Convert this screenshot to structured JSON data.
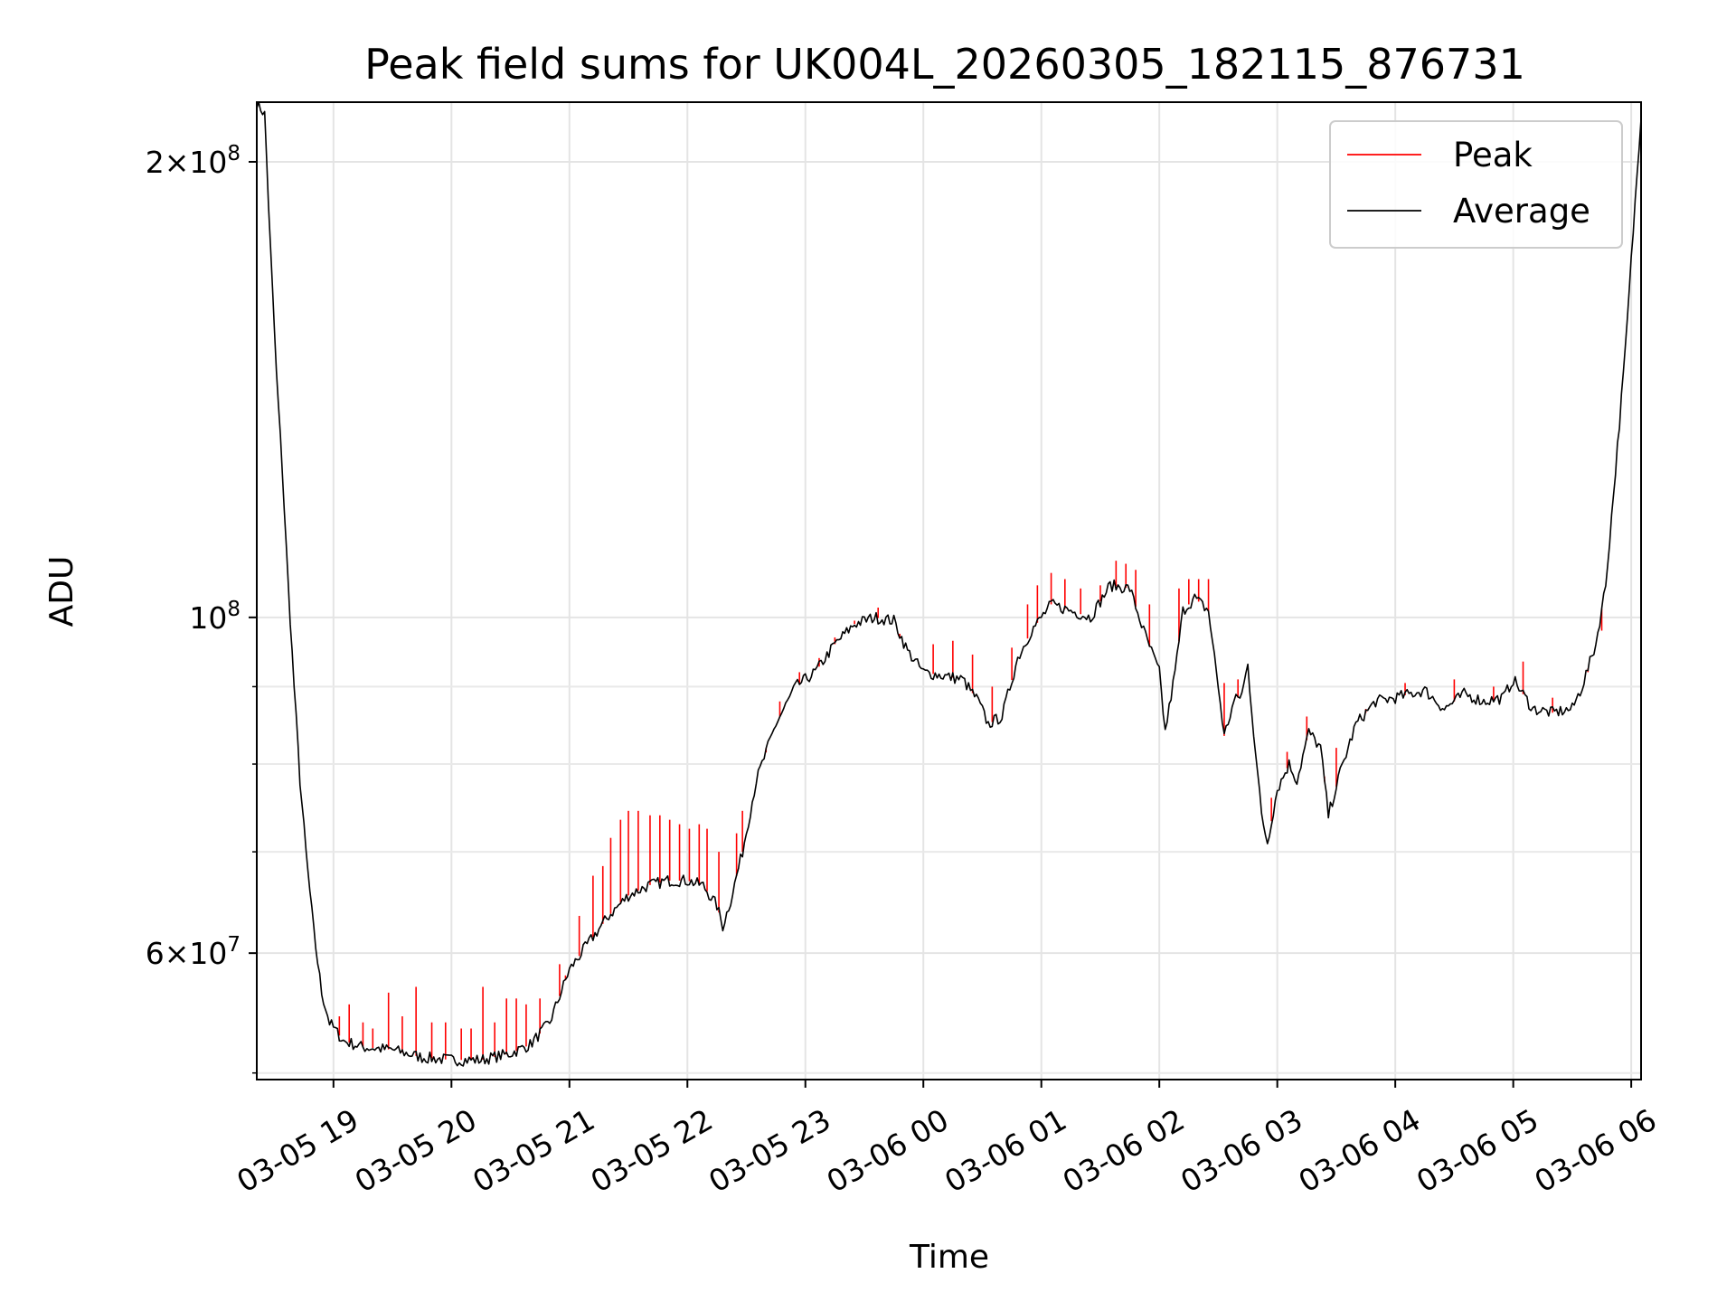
{
  "chart_data": {
    "type": "line",
    "title": "Peak field sums for UK004L_20260305_182115_876731",
    "xlabel": "Time",
    "ylabel": "ADU",
    "yscale": "log",
    "grid": true,
    "legend_position": "top-right",
    "xlim": [
      "2026-03-05T18:21",
      "2026-03-06T06:05"
    ],
    "ylim": [
      49500000,
      219000000
    ],
    "x_ticks": [
      {
        "t": "2026-03-05T19:00",
        "label": "03-05 19"
      },
      {
        "t": "2026-03-05T20:00",
        "label": "03-05 20"
      },
      {
        "t": "2026-03-05T21:00",
        "label": "03-05 21"
      },
      {
        "t": "2026-03-05T22:00",
        "label": "03-05 22"
      },
      {
        "t": "2026-03-05T23:00",
        "label": "03-05 23"
      },
      {
        "t": "2026-03-06T00:00",
        "label": "03-06 00"
      },
      {
        "t": "2026-03-06T01:00",
        "label": "03-06 01"
      },
      {
        "t": "2026-03-06T02:00",
        "label": "03-06 02"
      },
      {
        "t": "2026-03-06T03:00",
        "label": "03-06 03"
      },
      {
        "t": "2026-03-06T04:00",
        "label": "03-06 04"
      },
      {
        "t": "2026-03-06T05:00",
        "label": "03-06 05"
      },
      {
        "t": "2026-03-06T06:00",
        "label": "03-06 06"
      }
    ],
    "y_ticks": [
      {
        "value": 60000000,
        "mantissa": "6",
        "exponent": "7"
      },
      {
        "value": 100000000,
        "mantissa": "",
        "exponent": "8"
      },
      {
        "value": 200000000,
        "mantissa": "2",
        "exponent": "8"
      }
    ],
    "y_minor_ticks": [
      50000000,
      70000000,
      80000000,
      90000000
    ],
    "series": [
      {
        "name": "Average",
        "color": "#000000",
        "points": [
          [
            "2026-03-05T18:21",
            219000000
          ],
          [
            "2026-03-05T18:25",
            215000000
          ],
          [
            "2026-03-05T18:28",
            175000000
          ],
          [
            "2026-03-05T18:31",
            145000000
          ],
          [
            "2026-03-05T18:34",
            125000000
          ],
          [
            "2026-03-05T18:37",
            105000000
          ],
          [
            "2026-03-05T18:40",
            90000000
          ],
          [
            "2026-03-05T18:43",
            78000000
          ],
          [
            "2026-03-05T18:46",
            70000000
          ],
          [
            "2026-03-05T18:50",
            62000000
          ],
          [
            "2026-03-05T18:54",
            56500000
          ],
          [
            "2026-03-05T18:58",
            54000000
          ],
          [
            "2026-03-05T19:05",
            52500000
          ],
          [
            "2026-03-05T19:15",
            52000000
          ],
          [
            "2026-03-05T19:30",
            51800000
          ],
          [
            "2026-03-05T19:45",
            51200000
          ],
          [
            "2026-03-05T20:00",
            51000000
          ],
          [
            "2026-03-05T20:15",
            51000000
          ],
          [
            "2026-03-05T20:30",
            51500000
          ],
          [
            "2026-03-05T20:40",
            52200000
          ],
          [
            "2026-03-05T20:50",
            54000000
          ],
          [
            "2026-03-05T21:00",
            58500000
          ],
          [
            "2026-03-05T21:10",
            61000000
          ],
          [
            "2026-03-05T21:20",
            63500000
          ],
          [
            "2026-03-05T21:30",
            65500000
          ],
          [
            "2026-03-05T21:40",
            66500000
          ],
          [
            "2026-03-05T21:50",
            67000000
          ],
          [
            "2026-03-05T22:00",
            67000000
          ],
          [
            "2026-03-05T22:08",
            66500000
          ],
          [
            "2026-03-05T22:15",
            64500000
          ],
          [
            "2026-03-05T22:18",
            62500000
          ],
          [
            "2026-03-05T22:22",
            65000000
          ],
          [
            "2026-03-05T22:28",
            70000000
          ],
          [
            "2026-03-05T22:35",
            78000000
          ],
          [
            "2026-03-05T22:45",
            85000000
          ],
          [
            "2026-03-05T22:55",
            90000000
          ],
          [
            "2026-03-05T23:05",
            92000000
          ],
          [
            "2026-03-05T23:15",
            96000000
          ],
          [
            "2026-03-05T23:25",
            99000000
          ],
          [
            "2026-03-05T23:35",
            100000000
          ],
          [
            "2026-03-05T23:45",
            99500000
          ],
          [
            "2026-03-05T23:52",
            95000000
          ],
          [
            "2026-03-06T00:00",
            92000000
          ],
          [
            "2026-03-06T00:10",
            91500000
          ],
          [
            "2026-03-06T00:20",
            91000000
          ],
          [
            "2026-03-06T00:28",
            88000000
          ],
          [
            "2026-03-06T00:33",
            85000000
          ],
          [
            "2026-03-06T00:40",
            86000000
          ],
          [
            "2026-03-06T00:48",
            94000000
          ],
          [
            "2026-03-06T00:55",
            98000000
          ],
          [
            "2026-03-06T01:05",
            102000000
          ],
          [
            "2026-03-06T01:15",
            101000000
          ],
          [
            "2026-03-06T01:25",
            100000000
          ],
          [
            "2026-03-06T01:35",
            105000000
          ],
          [
            "2026-03-06T01:45",
            104500000
          ],
          [
            "2026-03-06T01:52",
            98000000
          ],
          [
            "2026-03-06T02:00",
            92000000
          ],
          [
            "2026-03-06T02:03",
            84000000
          ],
          [
            "2026-03-06T02:08",
            92000000
          ],
          [
            "2026-03-06T02:12",
            101000000
          ],
          [
            "2026-03-06T02:18",
            103000000
          ],
          [
            "2026-03-06T02:25",
            101000000
          ],
          [
            "2026-03-06T02:30",
            90000000
          ],
          [
            "2026-03-06T02:33",
            83500000
          ],
          [
            "2026-03-06T02:38",
            88000000
          ],
          [
            "2026-03-06T02:42",
            89000000
          ],
          [
            "2026-03-06T02:45",
            93000000
          ],
          [
            "2026-03-06T02:48",
            84000000
          ],
          [
            "2026-03-06T02:52",
            74000000
          ],
          [
            "2026-03-06T02:55",
            71000000
          ],
          [
            "2026-03-06T03:00",
            77000000
          ],
          [
            "2026-03-06T03:06",
            80000000
          ],
          [
            "2026-03-06T03:10",
            78000000
          ],
          [
            "2026-03-06T03:16",
            84000000
          ],
          [
            "2026-03-06T03:22",
            82000000
          ],
          [
            "2026-03-06T03:26",
            74000000
          ],
          [
            "2026-03-06T03:32",
            79000000
          ],
          [
            "2026-03-06T03:40",
            85000000
          ],
          [
            "2026-03-06T03:50",
            88000000
          ],
          [
            "2026-03-06T04:00",
            88500000
          ],
          [
            "2026-03-06T04:15",
            89500000
          ],
          [
            "2026-03-06T04:25",
            87000000
          ],
          [
            "2026-03-06T04:35",
            89000000
          ],
          [
            "2026-03-06T04:45",
            88000000
          ],
          [
            "2026-03-06T04:55",
            88500000
          ],
          [
            "2026-03-06T05:00",
            91000000
          ],
          [
            "2026-03-06T05:10",
            87000000
          ],
          [
            "2026-03-06T05:20",
            86500000
          ],
          [
            "2026-03-06T05:30",
            87000000
          ],
          [
            "2026-03-06T05:35",
            90000000
          ],
          [
            "2026-03-06T05:42",
            96000000
          ],
          [
            "2026-03-06T05:47",
            105000000
          ],
          [
            "2026-03-06T05:52",
            125000000
          ],
          [
            "2026-03-06T05:57",
            150000000
          ],
          [
            "2026-03-06T06:01",
            180000000
          ],
          [
            "2026-03-06T06:05",
            215000000
          ]
        ]
      },
      {
        "name": "Peak",
        "color": "#ff0000",
        "spikes": [
          [
            "2026-03-05T19:03",
            54500000
          ],
          [
            "2026-03-05T19:08",
            55500000
          ],
          [
            "2026-03-05T19:15",
            54000000
          ],
          [
            "2026-03-05T19:20",
            53500000
          ],
          [
            "2026-03-05T19:28",
            56500000
          ],
          [
            "2026-03-05T19:35",
            54500000
          ],
          [
            "2026-03-05T19:42",
            57000000
          ],
          [
            "2026-03-05T19:50",
            54000000
          ],
          [
            "2026-03-05T19:57",
            54000000
          ],
          [
            "2026-03-05T20:05",
            53500000
          ],
          [
            "2026-03-05T20:10",
            53500000
          ],
          [
            "2026-03-05T20:16",
            57000000
          ],
          [
            "2026-03-05T20:22",
            54000000
          ],
          [
            "2026-03-05T20:28",
            56000000
          ],
          [
            "2026-03-05T20:33",
            56000000
          ],
          [
            "2026-03-05T20:38",
            55500000
          ],
          [
            "2026-03-05T20:45",
            56000000
          ],
          [
            "2026-03-05T20:55",
            59000000
          ],
          [
            "2026-03-05T20:58",
            58000000
          ],
          [
            "2026-03-05T21:05",
            63500000
          ],
          [
            "2026-03-05T21:12",
            67500000
          ],
          [
            "2026-03-05T21:17",
            68500000
          ],
          [
            "2026-03-05T21:21",
            71500000
          ],
          [
            "2026-03-05T21:26",
            73500000
          ],
          [
            "2026-03-05T21:30",
            74500000
          ],
          [
            "2026-03-05T21:35",
            74500000
          ],
          [
            "2026-03-05T21:41",
            74000000
          ],
          [
            "2026-03-05T21:46",
            74000000
          ],
          [
            "2026-03-05T21:51",
            73500000
          ],
          [
            "2026-03-05T21:56",
            73000000
          ],
          [
            "2026-03-05T22:01",
            72500000
          ],
          [
            "2026-03-05T22:06",
            73000000
          ],
          [
            "2026-03-05T22:10",
            72500000
          ],
          [
            "2026-03-05T22:16",
            70000000
          ],
          [
            "2026-03-05T22:25",
            72000000
          ],
          [
            "2026-03-05T22:28",
            74500000
          ],
          [
            "2026-03-05T22:40",
            82000000
          ],
          [
            "2026-03-05T22:47",
            88000000
          ],
          [
            "2026-03-05T22:57",
            92000000
          ],
          [
            "2026-03-05T23:07",
            94000000
          ],
          [
            "2026-03-05T23:15",
            97000000
          ],
          [
            "2026-03-05T23:25",
            99500000
          ],
          [
            "2026-03-05T23:37",
            101500000
          ],
          [
            "2026-03-05T23:48",
            97000000
          ],
          [
            "2026-03-06T00:05",
            96000000
          ],
          [
            "2026-03-06T00:15",
            96500000
          ],
          [
            "2026-03-06T00:25",
            94500000
          ],
          [
            "2026-03-06T00:35",
            90000000
          ],
          [
            "2026-03-06T00:45",
            95500000
          ],
          [
            "2026-03-06T00:53",
            102000000
          ],
          [
            "2026-03-06T00:58",
            105000000
          ],
          [
            "2026-03-06T01:05",
            107000000
          ],
          [
            "2026-03-06T01:12",
            106000000
          ],
          [
            "2026-03-06T01:20",
            104500000
          ],
          [
            "2026-03-06T01:30",
            105000000
          ],
          [
            "2026-03-06T01:38",
            109000000
          ],
          [
            "2026-03-06T01:43",
            108500000
          ],
          [
            "2026-03-06T01:48",
            107500000
          ],
          [
            "2026-03-06T01:55",
            102000000
          ],
          [
            "2026-03-06T02:10",
            104500000
          ],
          [
            "2026-03-06T02:15",
            106000000
          ],
          [
            "2026-03-06T02:20",
            106000000
          ],
          [
            "2026-03-06T02:25",
            106000000
          ],
          [
            "2026-03-06T02:33",
            90500000
          ],
          [
            "2026-03-06T02:40",
            91000000
          ],
          [
            "2026-03-06T02:57",
            76000000
          ],
          [
            "2026-03-06T03:05",
            81500000
          ],
          [
            "2026-03-06T03:15",
            86000000
          ],
          [
            "2026-03-06T03:24",
            78500000
          ],
          [
            "2026-03-06T03:30",
            82000000
          ],
          [
            "2026-03-06T03:45",
            87000000
          ],
          [
            "2026-03-06T04:05",
            90500000
          ],
          [
            "2026-03-06T04:30",
            91000000
          ],
          [
            "2026-03-06T04:50",
            90000000
          ],
          [
            "2026-03-06T05:05",
            93500000
          ],
          [
            "2026-03-06T05:20",
            88500000
          ],
          [
            "2026-03-06T05:38",
            92000000
          ],
          [
            "2026-03-06T05:45",
            98000000
          ]
        ]
      }
    ],
    "legend": [
      {
        "label": "Peak",
        "color": "#ff0000"
      },
      {
        "label": "Average",
        "color": "#000000"
      }
    ]
  }
}
